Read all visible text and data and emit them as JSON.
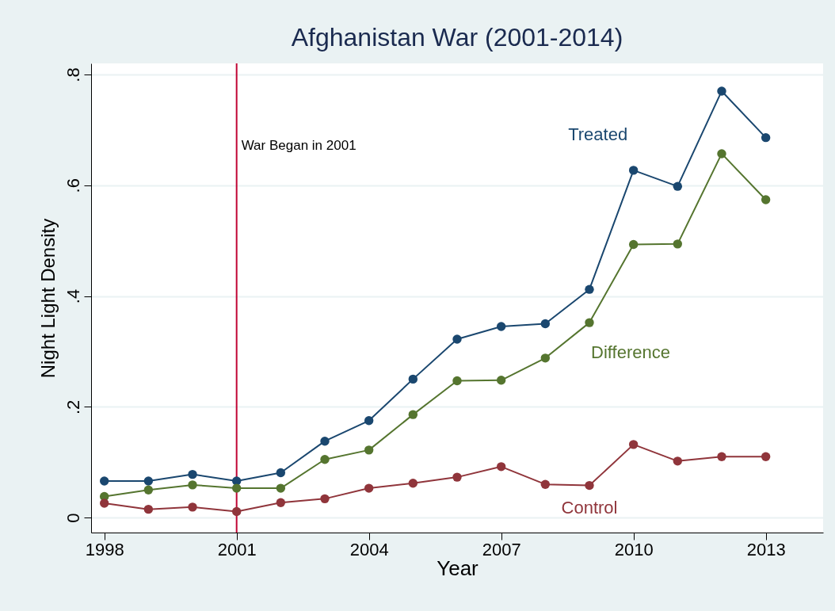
{
  "chart_data": {
    "type": "line",
    "title": "Afghanistan War (2001-2014)",
    "xlabel": "Year",
    "ylabel": "Night Light Density",
    "x": [
      1998,
      1999,
      2000,
      2001,
      2002,
      2003,
      2004,
      2005,
      2006,
      2007,
      2008,
      2009,
      2010,
      2011,
      2012,
      2013
    ],
    "series": [
      {
        "name": "Treated",
        "color": "#1a476f",
        "values": [
          0.066,
          0.066,
          0.078,
          0.066,
          0.081,
          0.138,
          0.175,
          0.25,
          0.322,
          0.345,
          0.35,
          0.412,
          0.627,
          0.598,
          0.77,
          0.686
        ]
      },
      {
        "name": "Difference",
        "color": "#55752f",
        "values": [
          0.038,
          0.05,
          0.059,
          0.053,
          0.053,
          0.105,
          0.122,
          0.186,
          0.247,
          0.248,
          0.288,
          0.352,
          0.493,
          0.494,
          0.657,
          0.574
        ]
      },
      {
        "name": "Control",
        "color": "#90353b",
        "values": [
          0.026,
          0.015,
          0.019,
          0.011,
          0.027,
          0.034,
          0.053,
          0.062,
          0.073,
          0.092,
          0.06,
          0.058,
          0.132,
          0.102,
          0.11,
          0.11
        ]
      }
    ],
    "ref_lines": [
      {
        "axis": "x",
        "value": 2001,
        "label": "War Began in 2001",
        "color": "#c10534"
      }
    ],
    "xlim": [
      1997.7,
      2014.3
    ],
    "xticks": [
      1998,
      2001,
      2004,
      2007,
      2010,
      2013
    ],
    "ylim": [
      -0.027,
      0.82
    ],
    "yticks": [
      {
        "value": 0,
        "label": "0"
      },
      {
        "value": 0.2,
        "label": ".2"
      },
      {
        "value": 0.4,
        "label": ".4"
      },
      {
        "value": 0.6,
        "label": ".6"
      },
      {
        "value": 0.8,
        "label": ".8"
      }
    ],
    "grid": "y",
    "legend": false,
    "marker": "circle",
    "line_style": "solid"
  }
}
